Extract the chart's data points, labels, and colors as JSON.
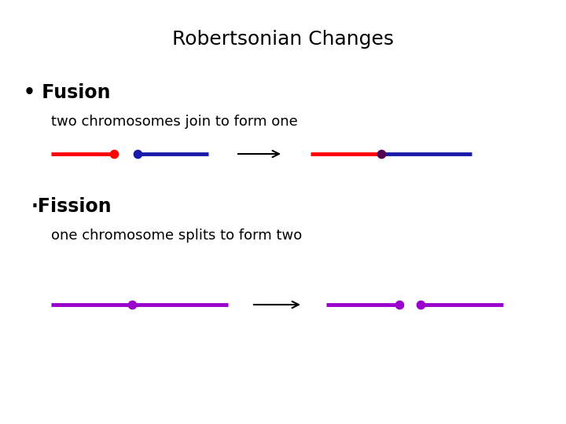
{
  "title": "Robertsonian Changes",
  "title_fontsize": 18,
  "title_fontweight": "normal",
  "bg_color": "#ffffff",
  "fusion_label": "• Fusion",
  "fusion_sub": "two chromosomes join to form one",
  "fission_label": "·Fission",
  "fission_sub": "one chromosome splits to form two",
  "red": "#ff0000",
  "blue": "#1a1aaa",
  "purple": "#9900cc",
  "black": "#000000",
  "dot_size": 55,
  "lw": 3.5
}
